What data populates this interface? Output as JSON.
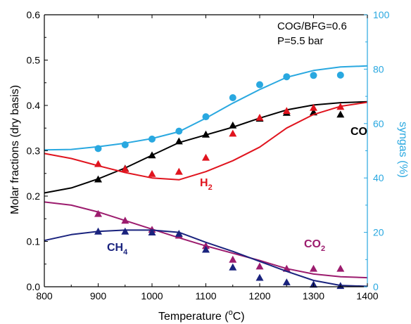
{
  "chart_data": {
    "type": "line",
    "xlabel": "Temperature (°C)",
    "ylabel": "Molar fractions (dry basis)",
    "y2label": "syngas (%)",
    "xlim": [
      800,
      1400
    ],
    "ylim": [
      0,
      0.6
    ],
    "y2lim": [
      0,
      100
    ],
    "xticks": [
      "800",
      "900",
      "1000",
      "1100",
      "1200",
      "1300",
      "1400"
    ],
    "yticks": [
      "0.0",
      "0.1",
      "0.2",
      "0.3",
      "0.4",
      "0.5",
      "0.6"
    ],
    "y2ticks": [
      "0",
      "20",
      "40",
      "60",
      "80",
      "100"
    ],
    "annotations": [
      "COG/BFG=0.6",
      "P=5.5 bar"
    ],
    "grid": false,
    "series": [
      {
        "name": "CO",
        "axis": "left",
        "color": "#000000",
        "line": {
          "x": [
            800,
            850,
            900,
            950,
            1000,
            1050,
            1100,
            1150,
            1200,
            1250,
            1300,
            1350,
            1400
          ],
          "y": [
            0.207,
            0.218,
            0.238,
            0.262,
            0.29,
            0.318,
            0.335,
            0.352,
            0.372,
            0.39,
            0.401,
            0.406,
            0.408
          ]
        },
        "markers": {
          "shape": "triangle",
          "x": [
            900,
            950,
            1000,
            1050,
            1100,
            1150,
            1200,
            1250,
            1300,
            1350
          ],
          "y": [
            0.237,
            0.261,
            0.29,
            0.321,
            0.336,
            0.356,
            0.371,
            0.384,
            0.385,
            0.38
          ]
        }
      },
      {
        "name": "H2",
        "axis": "left",
        "color": "#e0141e",
        "line": {
          "x": [
            800,
            850,
            900,
            950,
            1000,
            1050,
            1100,
            1150,
            1200,
            1250,
            1300,
            1350,
            1400
          ],
          "y": [
            0.294,
            0.283,
            0.267,
            0.252,
            0.24,
            0.236,
            0.254,
            0.278,
            0.308,
            0.35,
            0.38,
            0.398,
            0.407
          ]
        },
        "markers": {
          "shape": "triangle",
          "x": [
            900,
            950,
            1000,
            1050,
            1100,
            1150,
            1200,
            1250,
            1300,
            1350
          ],
          "y": [
            0.271,
            0.26,
            0.249,
            0.254,
            0.285,
            0.338,
            0.373,
            0.388,
            0.395,
            0.397
          ]
        }
      },
      {
        "name": "CO2",
        "axis": "left",
        "color": "#9c1c6e",
        "line": {
          "x": [
            800,
            850,
            900,
            950,
            1000,
            1050,
            1100,
            1150,
            1200,
            1250,
            1300,
            1350,
            1400
          ],
          "y": [
            0.187,
            0.18,
            0.165,
            0.146,
            0.127,
            0.108,
            0.09,
            0.074,
            0.058,
            0.04,
            0.028,
            0.022,
            0.02
          ]
        },
        "markers": {
          "shape": "triangle",
          "x": [
            900,
            950,
            1000,
            1050,
            1100,
            1150,
            1200,
            1250,
            1300,
            1350
          ],
          "y": [
            0.161,
            0.146,
            0.126,
            0.113,
            0.09,
            0.06,
            0.045,
            0.04,
            0.04,
            0.04
          ]
        }
      },
      {
        "name": "CH4",
        "axis": "left",
        "color": "#1a237e",
        "line": {
          "x": [
            800,
            850,
            900,
            950,
            1000,
            1050,
            1100,
            1150,
            1200,
            1250,
            1300,
            1350,
            1400
          ],
          "y": [
            0.102,
            0.115,
            0.122,
            0.125,
            0.125,
            0.12,
            0.098,
            0.078,
            0.056,
            0.034,
            0.014,
            0.003,
            0.001
          ]
        },
        "markers": {
          "shape": "triangle",
          "x": [
            900,
            950,
            1000,
            1050,
            1100,
            1150,
            1200,
            1250,
            1300,
            1350
          ],
          "y": [
            0.122,
            0.122,
            0.12,
            0.117,
            0.082,
            0.043,
            0.02,
            0.01,
            0.005,
            0.002
          ]
        }
      },
      {
        "name": "syngas",
        "axis": "right",
        "color": "#29a8e0",
        "line": {
          "x": [
            800,
            850,
            900,
            950,
            1000,
            1050,
            1100,
            1150,
            1200,
            1250,
            1300,
            1350,
            1400
          ],
          "y": [
            50.3,
            50.5,
            51.5,
            52.8,
            54.5,
            57.0,
            62.0,
            67.5,
            72.5,
            77.0,
            79.5,
            80.8,
            81.2
          ]
        },
        "markers": {
          "shape": "circle",
          "x": [
            900,
            950,
            1000,
            1050,
            1100,
            1150,
            1200,
            1250,
            1300,
            1350
          ],
          "y": [
            50.8,
            52.2,
            54.3,
            57.2,
            62.5,
            69.5,
            74.3,
            77.2,
            77.7,
            77.8
          ]
        }
      }
    ]
  },
  "labels": {
    "co": "CO",
    "h2_main": "H",
    "h2_sub": "2",
    "co2_main": "CO",
    "co2_sub": "2",
    "ch4_main": "CH",
    "ch4_sub": "4",
    "xlabel_main": "Temperature (",
    "xlabel_sup": "o",
    "xlabel_end": "C)"
  }
}
